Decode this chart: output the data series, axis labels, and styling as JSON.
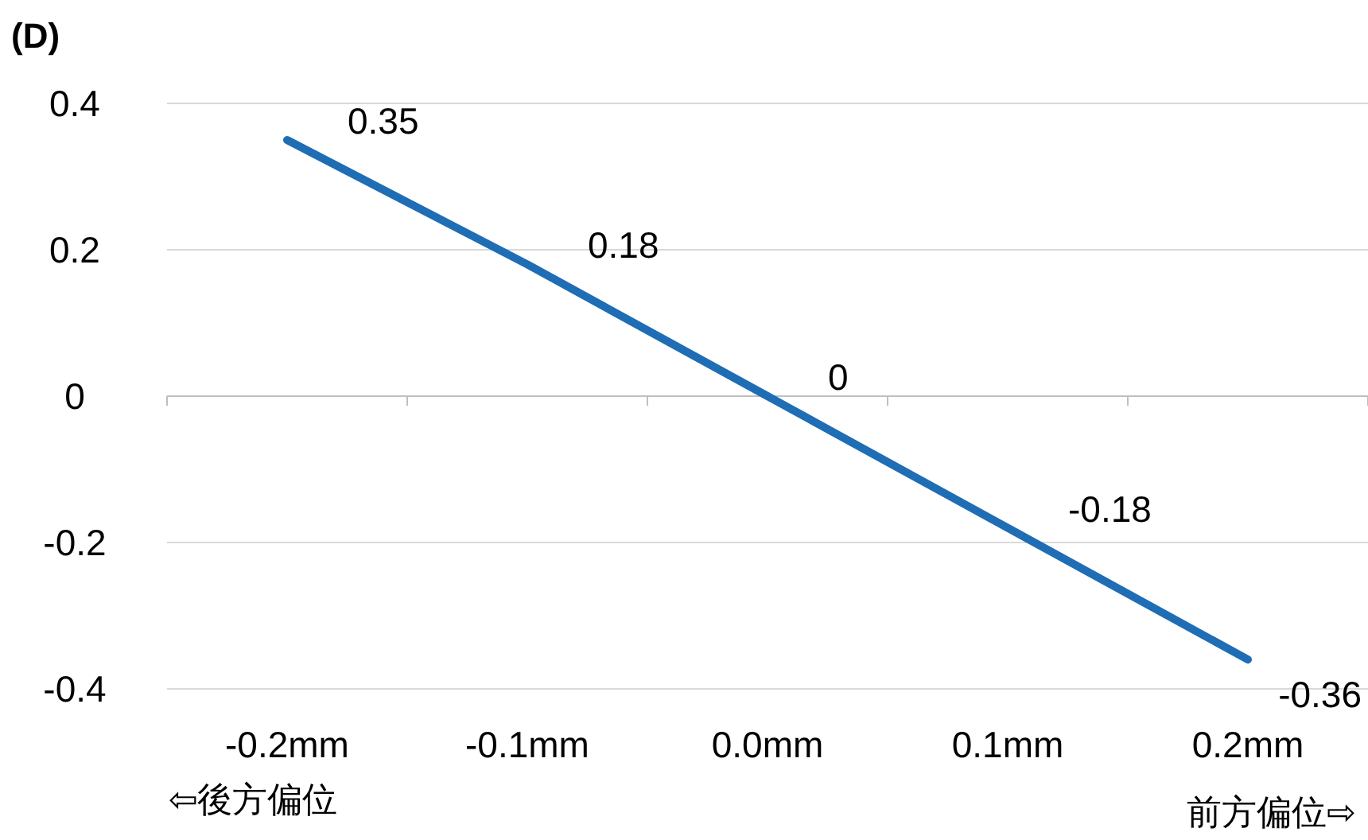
{
  "chart_data": {
    "type": "line",
    "ylabel": "(D)",
    "categories": [
      "-0.2mm",
      "-0.1mm",
      "0.0mm",
      "0.1mm",
      "0.2mm"
    ],
    "values": [
      0.35,
      0.18,
      0,
      -0.18,
      -0.36
    ],
    "color": "#1f6db4",
    "ylim": [
      -0.4,
      0.4
    ],
    "yticks": [
      -0.4,
      -0.2,
      0,
      0.2,
      0.4
    ],
    "grid": "y",
    "data_labels": true,
    "annotations": [
      "⇦後方偏位",
      "前方偏位⇨"
    ]
  }
}
